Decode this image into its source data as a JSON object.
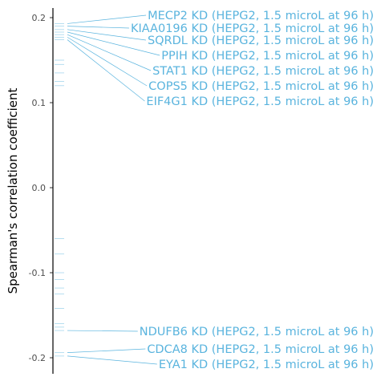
{
  "chart_data": {
    "type": "scatter",
    "ylabel": "Spearman's correlation coefficient",
    "xlabel": "",
    "ylim": [
      -0.22,
      0.215
    ],
    "y_ticks": [
      0.2,
      0.1,
      0.0,
      -0.1,
      -0.2
    ],
    "y_tick_labels": [
      "0.2",
      "0.1",
      "0.0",
      "-0.1",
      "-0.2"
    ],
    "grid": false,
    "color": "#5ab4de",
    "labeled_points": [
      {
        "label": "MECP2 KD (HEPG2, 1.5 microL at 96 h)",
        "y": 0.193
      },
      {
        "label": "KIAA0196 KD (HEPG2, 1.5 microL at 96 h)",
        "y": 0.19
      },
      {
        "label": "SQRDL KD (HEPG2, 1.5 microL at 96 h)",
        "y": 0.186
      },
      {
        "label": "PPIH KD (HEPG2, 1.5 microL at 96 h)",
        "y": 0.183
      },
      {
        "label": "STAT1 KD (HEPG2, 1.5 microL at 96 h)",
        "y": 0.18
      },
      {
        "label": "COPS5 KD (HEPG2, 1.5 microL at 96 h)",
        "y": 0.177
      },
      {
        "label": "EIF4G1 KD (HEPG2, 1.5 microL at 96 h)",
        "y": 0.174
      },
      {
        "label": "NDUFB6 KD (HEPG2, 1.5 microL at 96 h)",
        "y": -0.168
      },
      {
        "label": "CDCA8 KD (HEPG2, 1.5 microL at 96 h)",
        "y": -0.194
      },
      {
        "label": "EYA1 KD (HEPG2, 1.5 microL at 96 h)",
        "y": -0.198
      }
    ],
    "other_points": [
      0.193,
      0.19,
      0.186,
      0.183,
      0.18,
      0.177,
      0.174,
      0.15,
      0.145,
      0.135,
      0.125,
      0.12,
      -0.06,
      -0.078,
      -0.1,
      -0.108,
      -0.118,
      -0.125,
      -0.142,
      -0.16,
      -0.164,
      -0.168,
      -0.194,
      -0.198
    ]
  }
}
